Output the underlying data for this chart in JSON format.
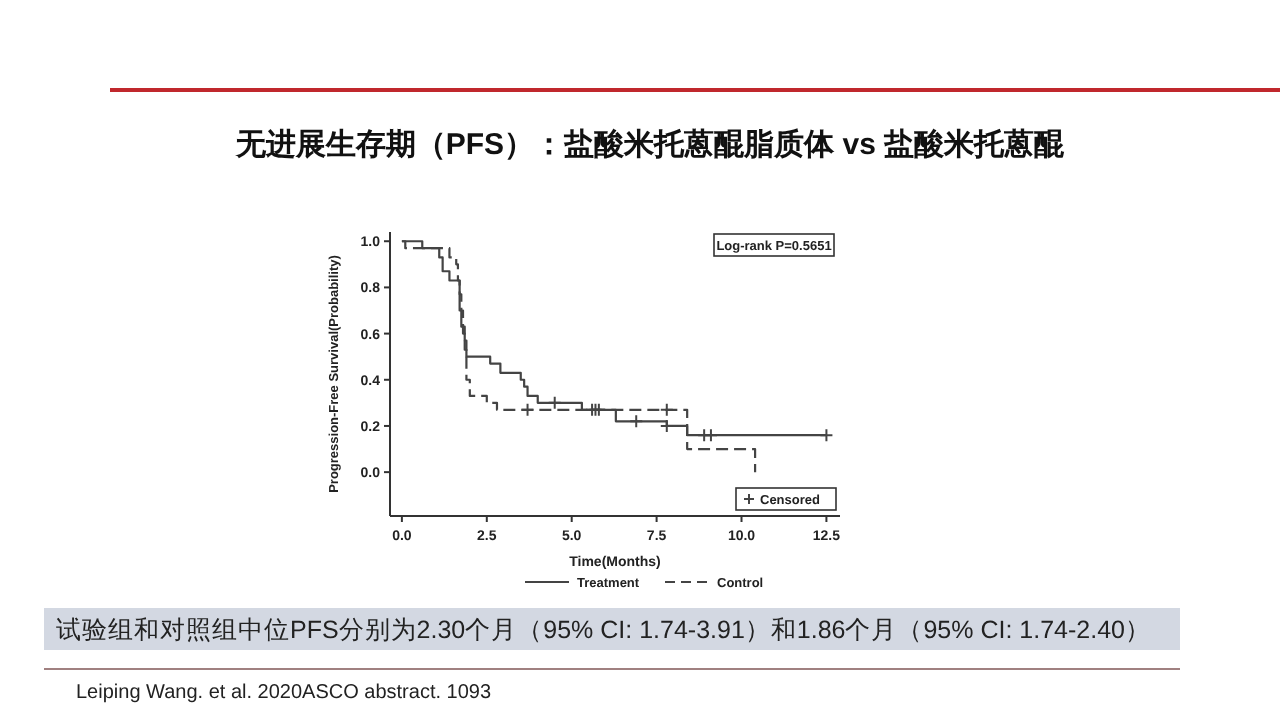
{
  "chart_data": {
    "type": "step",
    "title": "无进展生存期（PFS）：盐酸米托蒽醌脂质体 vs 盐酸米托蒽醌",
    "xlabel": "Time(Months)",
    "ylabel": "Progression-Free Survival(Probability)",
    "xlim": [
      -0.35,
      12.9
    ],
    "ylim": [
      -0.19,
      1.04
    ],
    "xticks": [
      {
        "value": 0,
        "label": "0.0"
      },
      {
        "value": 2.5,
        "label": "2.5"
      },
      {
        "value": 5,
        "label": "5.0"
      },
      {
        "value": 7.5,
        "label": "7.5"
      },
      {
        "value": 10,
        "label": "10.0"
      },
      {
        "value": 12.5,
        "label": "12.5"
      }
    ],
    "yticks": [
      {
        "value": 0,
        "label": "0.0"
      },
      {
        "value": 0.2,
        "label": "0.2"
      },
      {
        "value": 0.4,
        "label": "0.4"
      },
      {
        "value": 0.6,
        "label": "0.6"
      },
      {
        "value": 0.8,
        "label": "0.8"
      },
      {
        "value": 1,
        "label": "1.0"
      }
    ],
    "series": [
      {
        "name": "Treatment",
        "color": "#444444",
        "line_style": "solid",
        "x": [
          0,
          0.6,
          1.1,
          1.2,
          1.4,
          1.7,
          1.75,
          1.85,
          1.9,
          2.6,
          2.9,
          3.5,
          3.6,
          3.7,
          4.0,
          5.3,
          6.3,
          7.8,
          8.4,
          12.5
        ],
        "values": [
          1.0,
          0.97,
          0.93,
          0.87,
          0.83,
          0.7,
          0.63,
          0.57,
          0.5,
          0.47,
          0.43,
          0.4,
          0.37,
          0.33,
          0.3,
          0.27,
          0.22,
          0.2,
          0.16,
          0.16
        ]
      },
      {
        "name": "Control",
        "color": "#444444",
        "line_style": "dashed",
        "x": [
          0,
          0.1,
          1.4,
          1.6,
          1.65,
          1.7,
          1.75,
          1.8,
          1.85,
          1.9,
          2.0,
          2.5,
          2.8,
          8.4,
          10.4
        ],
        "values": [
          1.0,
          0.97,
          0.93,
          0.9,
          0.83,
          0.77,
          0.7,
          0.6,
          0.53,
          0.4,
          0.33,
          0.3,
          0.27,
          0.1,
          0.0
        ]
      },
      {
        "name": "Censored",
        "type": "scatter",
        "marker": "cross",
        "color": "#444444",
        "x": [
          4.5,
          5.7,
          6.9,
          7.8,
          8.9,
          9.1,
          12.5,
          3.7,
          5.6,
          5.8,
          7.8
        ],
        "values": [
          0.3,
          0.27,
          0.22,
          0.2,
          0.16,
          0.16,
          0.16,
          0.27,
          0.27,
          0.27,
          0.27
        ]
      }
    ],
    "legend": "bottom",
    "annotations": [
      "Log-rank P=0.5651",
      "试验组和对照组中位PFS分别为2.30个月（95% CI: 1.74-3.91）和1.86个月（95% CI: 1.74-2.40）",
      "Leiping Wang. et al. 2020ASCO abstract. 1093"
    ]
  }
}
